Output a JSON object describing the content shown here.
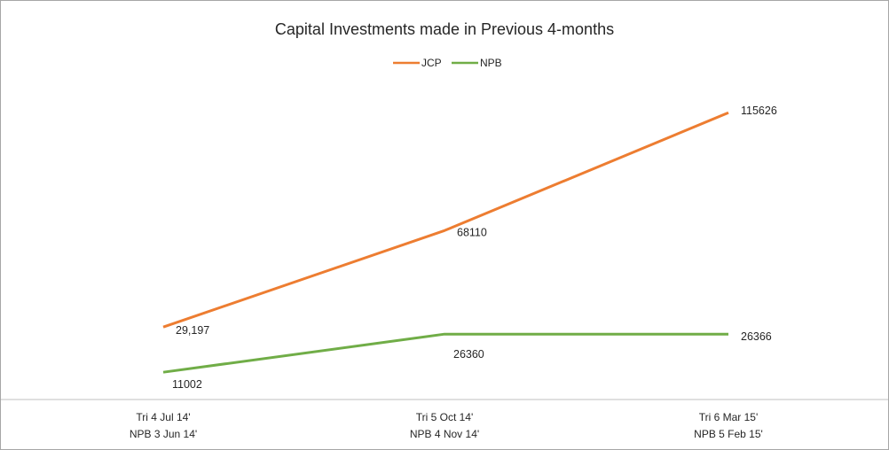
{
  "chart_data": {
    "type": "line",
    "title": "Capital Investments made in Previous 4-months",
    "xlabel": "",
    "ylabel": "",
    "categories": [
      [
        "Tri 4  Jul 14'",
        "NPB 3 Jun 14'"
      ],
      [
        "Tri 5  Oct 14'",
        "NPB 4  Nov 14'"
      ],
      [
        "Tri 6  Mar 15'",
        "NPB 5 Feb 15'"
      ]
    ],
    "series": [
      {
        "name": "JCP",
        "color": "#ED7D31",
        "values": [
          29197,
          68110,
          115626
        ],
        "labels": [
          "29,197",
          "68110",
          "115626"
        ]
      },
      {
        "name": "NPB",
        "color": "#70AD47",
        "values": [
          11002,
          26360,
          26366
        ],
        "labels": [
          "11002",
          "26360",
          "26366"
        ]
      }
    ],
    "ylim": [
      0,
      140000
    ],
    "grid": false,
    "legend_position": "top-center",
    "show_y_axis": false
  }
}
